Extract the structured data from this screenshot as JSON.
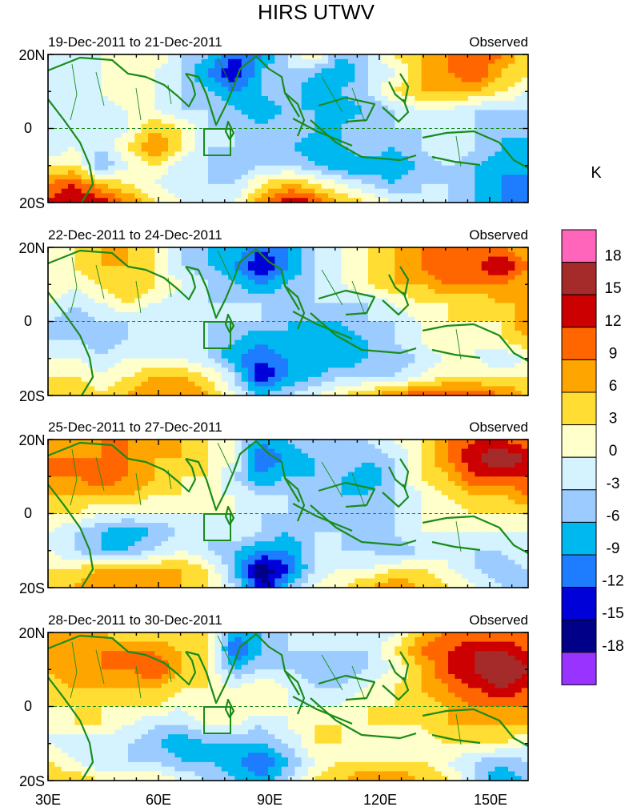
{
  "title": "HIRS UTWV",
  "panels": [
    {
      "dates": "19-Dec-2011 to 21-Dec-2011",
      "label": "Observed",
      "field": [
        [
          0,
          -3,
          0,
          3,
          3,
          -3,
          -6,
          -12,
          -9,
          -3,
          3,
          -6,
          -3,
          3,
          6,
          9,
          12,
          9,
          3
        ],
        [
          -3,
          0,
          0,
          3,
          0,
          -3,
          -9,
          -15,
          -6,
          -3,
          -6,
          -9,
          -3,
          0,
          6,
          9,
          12,
          6,
          3
        ],
        [
          -3,
          -3,
          0,
          3,
          0,
          -3,
          -6,
          -9,
          -6,
          -3,
          -9,
          -6,
          -3,
          3,
          6,
          6,
          6,
          3,
          0
        ],
        [
          -3,
          0,
          -3,
          0,
          0,
          -3,
          -3,
          -6,
          -9,
          -6,
          -6,
          -9,
          -6,
          -3,
          0,
          0,
          -3,
          -3,
          -3
        ],
        [
          0,
          0,
          -3,
          0,
          6,
          3,
          -3,
          -3,
          -6,
          -3,
          -6,
          -6,
          -3,
          -3,
          -3,
          0,
          -3,
          -6,
          -3
        ],
        [
          -3,
          0,
          -3,
          3,
          9,
          3,
          -3,
          -3,
          -3,
          -6,
          -9,
          -6,
          -3,
          -6,
          -3,
          0,
          -3,
          -6,
          -9
        ],
        [
          3,
          3,
          -6,
          0,
          3,
          -3,
          -3,
          -6,
          -3,
          -3,
          -6,
          -9,
          -9,
          -9,
          -6,
          -3,
          -6,
          -9,
          -6
        ],
        [
          9,
          12,
          6,
          3,
          0,
          -3,
          -3,
          -3,
          3,
          6,
          3,
          0,
          -3,
          -6,
          -3,
          -3,
          -6,
          -9,
          -12
        ],
        [
          12,
          15,
          15,
          9,
          3,
          0,
          -3,
          0,
          9,
          15,
          12,
          6,
          3,
          0,
          -3,
          -3,
          -6,
          -9,
          -12
        ]
      ]
    },
    {
      "dates": "22-Dec-2011 to 24-Dec-2011",
      "label": "Observed",
      "field": [
        [
          3,
          3,
          6,
          6,
          3,
          -3,
          -6,
          -6,
          -12,
          -9,
          -3,
          0,
          3,
          6,
          9,
          9,
          9,
          9,
          6
        ],
        [
          0,
          3,
          6,
          6,
          3,
          -3,
          -6,
          -9,
          -15,
          -9,
          -3,
          0,
          3,
          6,
          9,
          12,
          12,
          15,
          9
        ],
        [
          3,
          0,
          3,
          6,
          3,
          0,
          -3,
          -6,
          -9,
          -6,
          -3,
          0,
          3,
          6,
          6,
          9,
          9,
          9,
          6
        ],
        [
          0,
          -3,
          0,
          3,
          0,
          -3,
          -3,
          -3,
          -3,
          -3,
          -3,
          -3,
          -3,
          0,
          3,
          3,
          3,
          6,
          6
        ],
        [
          -3,
          -6,
          -3,
          -3,
          -3,
          -3,
          -3,
          -3,
          -3,
          -6,
          -6,
          -6,
          -3,
          -3,
          0,
          3,
          3,
          3,
          9
        ],
        [
          -3,
          -3,
          -6,
          -3,
          -3,
          -3,
          -3,
          -6,
          -9,
          -6,
          -9,
          -9,
          -6,
          -3,
          0,
          3,
          0,
          3,
          6
        ],
        [
          0,
          0,
          -3,
          0,
          0,
          0,
          -3,
          -9,
          -12,
          -9,
          -9,
          -9,
          -6,
          -6,
          -3,
          0,
          0,
          -3,
          0
        ],
        [
          3,
          3,
          0,
          3,
          6,
          6,
          3,
          -3,
          -15,
          -9,
          -6,
          -3,
          -3,
          -3,
          0,
          3,
          3,
          3,
          3
        ],
        [
          6,
          6,
          3,
          6,
          9,
          9,
          6,
          0,
          -6,
          -3,
          0,
          3,
          6,
          9,
          12,
          12,
          12,
          9,
          6
        ]
      ]
    },
    {
      "dates": "25-Dec-2011 to 27-Dec-2011",
      "label": "Observed",
      "field": [
        [
          6,
          6,
          9,
          9,
          6,
          6,
          3,
          0,
          -9,
          -6,
          -3,
          -3,
          -3,
          0,
          3,
          9,
          12,
          12,
          9
        ],
        [
          9,
          9,
          9,
          9,
          6,
          6,
          3,
          0,
          -12,
          -9,
          -6,
          -3,
          -6,
          -3,
          3,
          9,
          15,
          18,
          15
        ],
        [
          9,
          9,
          12,
          9,
          6,
          3,
          3,
          -3,
          -9,
          -6,
          -6,
          -6,
          -9,
          -3,
          3,
          6,
          12,
          12,
          12
        ],
        [
          6,
          6,
          6,
          6,
          3,
          3,
          0,
          0,
          -3,
          -3,
          -6,
          -6,
          -6,
          -3,
          0,
          3,
          6,
          6,
          9
        ],
        [
          3,
          3,
          0,
          0,
          0,
          0,
          0,
          0,
          -3,
          -3,
          -3,
          -6,
          -3,
          -3,
          0,
          0,
          3,
          3,
          3
        ],
        [
          0,
          -3,
          -6,
          -9,
          -6,
          -3,
          -3,
          0,
          -3,
          -6,
          -3,
          -3,
          -6,
          -3,
          0,
          0,
          0,
          0,
          0
        ],
        [
          0,
          -3,
          -6,
          -6,
          -3,
          0,
          -3,
          -6,
          -9,
          -9,
          -3,
          -3,
          -3,
          -6,
          -3,
          0,
          -3,
          -3,
          0
        ],
        [
          3,
          3,
          6,
          6,
          6,
          6,
          3,
          -6,
          -18,
          -12,
          -3,
          0,
          0,
          3,
          3,
          0,
          -3,
          -6,
          -3
        ],
        [
          6,
          6,
          9,
          9,
          9,
          6,
          3,
          -3,
          -15,
          -6,
          0,
          3,
          6,
          9,
          6,
          3,
          0,
          -3,
          -6
        ]
      ]
    },
    {
      "dates": "28-Dec-2011 to 30-Dec-2011",
      "label": "Observed",
      "field": [
        [
          6,
          6,
          6,
          3,
          3,
          3,
          3,
          -9,
          -6,
          -3,
          0,
          0,
          -3,
          0,
          6,
          9,
          9,
          9,
          9
        ],
        [
          6,
          6,
          9,
          9,
          9,
          6,
          3,
          -12,
          -6,
          -3,
          -3,
          -3,
          -3,
          3,
          9,
          12,
          15,
          15,
          12
        ],
        [
          6,
          9,
          9,
          9,
          12,
          6,
          3,
          -6,
          -3,
          -3,
          -6,
          -6,
          -3,
          0,
          6,
          12,
          15,
          18,
          15
        ],
        [
          3,
          6,
          6,
          6,
          6,
          3,
          3,
          0,
          3,
          0,
          -3,
          -3,
          0,
          3,
          6,
          9,
          12,
          15,
          12
        ],
        [
          3,
          3,
          3,
          3,
          3,
          0,
          3,
          3,
          3,
          0,
          0,
          0,
          3,
          3,
          3,
          6,
          9,
          9,
          9
        ],
        [
          0,
          3,
          3,
          0,
          -3,
          -3,
          0,
          0,
          -3,
          0,
          3,
          3,
          3,
          3,
          3,
          6,
          6,
          6,
          6
        ],
        [
          0,
          -3,
          -3,
          -3,
          -6,
          -9,
          -6,
          -6,
          -6,
          -3,
          3,
          3,
          0,
          0,
          0,
          3,
          3,
          3,
          0
        ],
        [
          3,
          0,
          -3,
          -3,
          -3,
          -6,
          -6,
          -9,
          -12,
          -6,
          0,
          3,
          3,
          3,
          3,
          0,
          -3,
          -6,
          -3
        ],
        [
          6,
          6,
          3,
          3,
          3,
          0,
          -3,
          -6,
          -9,
          -3,
          3,
          6,
          9,
          9,
          6,
          3,
          -3,
          -9,
          -6
        ]
      ]
    }
  ],
  "lat_labels": [
    "20N",
    "0",
    "20S"
  ],
  "lon_labels": [
    "30E",
    "60E",
    "90E",
    "120E",
    "150E"
  ],
  "colorbar": {
    "unit": "K",
    "levels": [
      "18",
      "15",
      "12",
      "9",
      "6",
      "3",
      "0",
      "-3",
      "-6",
      "-9",
      "-12",
      "-15",
      "-18"
    ],
    "colors": [
      "#ff66bb",
      "#a52a2a",
      "#cc0000",
      "#ff6600",
      "#ffa500",
      "#ffdd33",
      "#ffffcc",
      "#d4f3ff",
      "#9cccff",
      "#00b8f0",
      "#1e7cff",
      "#0000d8",
      "#000088",
      "#9933ff"
    ]
  }
}
